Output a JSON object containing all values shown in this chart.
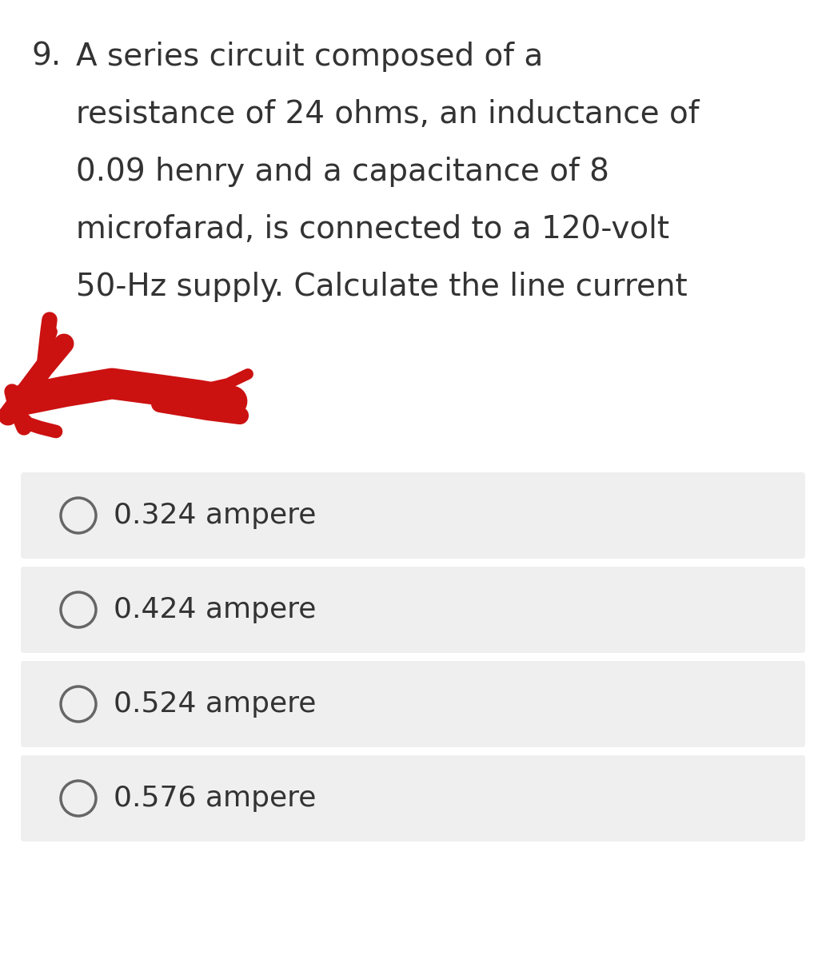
{
  "background_color": "#ffffff",
  "question_number": "9.",
  "question_lines": [
    "A series circuit composed of a",
    "resistance of 24 ohms, an inductance of",
    "0.09 henry and a capacitance of 8",
    "microfarad, is connected to a 120-volt",
    "50-Hz supply. Calculate the line current"
  ],
  "options": [
    "0.324 ampere",
    "0.424 ampere",
    "0.524 ampere",
    "0.576 ampere"
  ],
  "option_bg_color": "#efefef",
  "option_text_color": "#333333",
  "question_text_color": "#333333",
  "circle_color": "#666666",
  "scribble_color": "#cc1111",
  "font_size_question": 28,
  "font_size_option": 26,
  "figure_width": 10.33,
  "figure_height": 12.0,
  "dpi": 100
}
